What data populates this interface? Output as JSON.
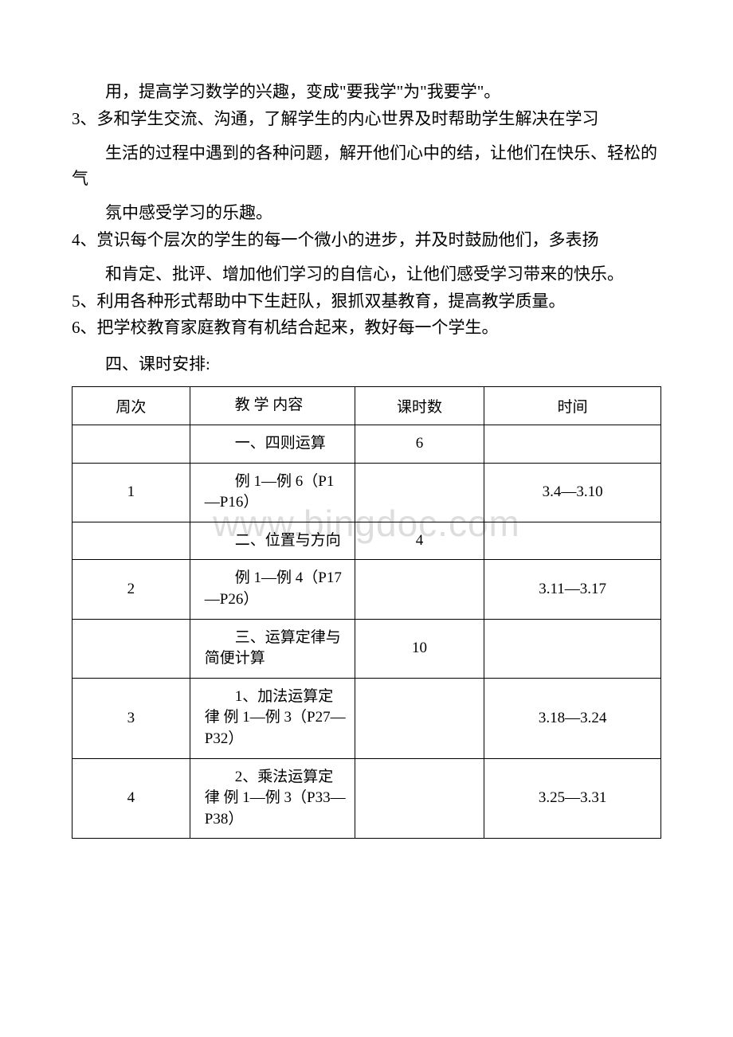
{
  "watermark": "www.bingdoc.com",
  "paragraphs": {
    "p1": "用，提高学习数学的兴趣，变成\"要我学\"为\"我要学\"。",
    "p2": "3、多和学生交流、沟通，了解学生的内心世界及时帮助学生解决在学习",
    "p3": "生活的过程中遇到的各种问题，解开他们心中的结，让他们在快乐、轻松的气",
    "p4": "氛中感受学习的乐趣。",
    "p5": "4、赏识每个层次的学生的每一个微小的进步，并及时鼓励他们，多表扬",
    "p6": "和肯定、批评、增加他们学习的自信心，让他们感受学习带来的快乐。",
    "p7": "5、利用各种形式帮助中下生赶队，狠抓双基教育，提高教学质量。",
    "p8": "6、把学校教育家庭教育有机结合起来，教好每一个学生。"
  },
  "section_title": "四、课时安排:",
  "table": {
    "headers": {
      "week": "周次",
      "content": "教 学 内容",
      "hours": "课时数",
      "date": "时间"
    },
    "rows": [
      {
        "week": "",
        "content": "一、四则运算",
        "hours": "6",
        "date": ""
      },
      {
        "week": "1",
        "content": "例 1—例 6（P1—P16）",
        "hours": "",
        "date": "3.4—3.10"
      },
      {
        "week": "",
        "content": "二、位置与方向",
        "hours": "4",
        "date": ""
      },
      {
        "week": "2",
        "content": "例 1—例 4（P17—P26）",
        "hours": "",
        "date": "3.11—3.17"
      },
      {
        "week": "",
        "content": "三、运算定律与简便计算",
        "hours": "10",
        "date": ""
      },
      {
        "week": "3",
        "content": "1、加法运算定律 例 1—例 3（P27—P32）",
        "hours": "",
        "date": "3.18—3.24"
      },
      {
        "week": "4",
        "content": "2、乘法运算定律 例 1—例 3（P33—P38）",
        "hours": "",
        "date": "3.25—3.31"
      }
    ]
  },
  "colors": {
    "text": "#000000",
    "background": "#ffffff",
    "border": "#000000",
    "watermark": "#dddddd"
  }
}
